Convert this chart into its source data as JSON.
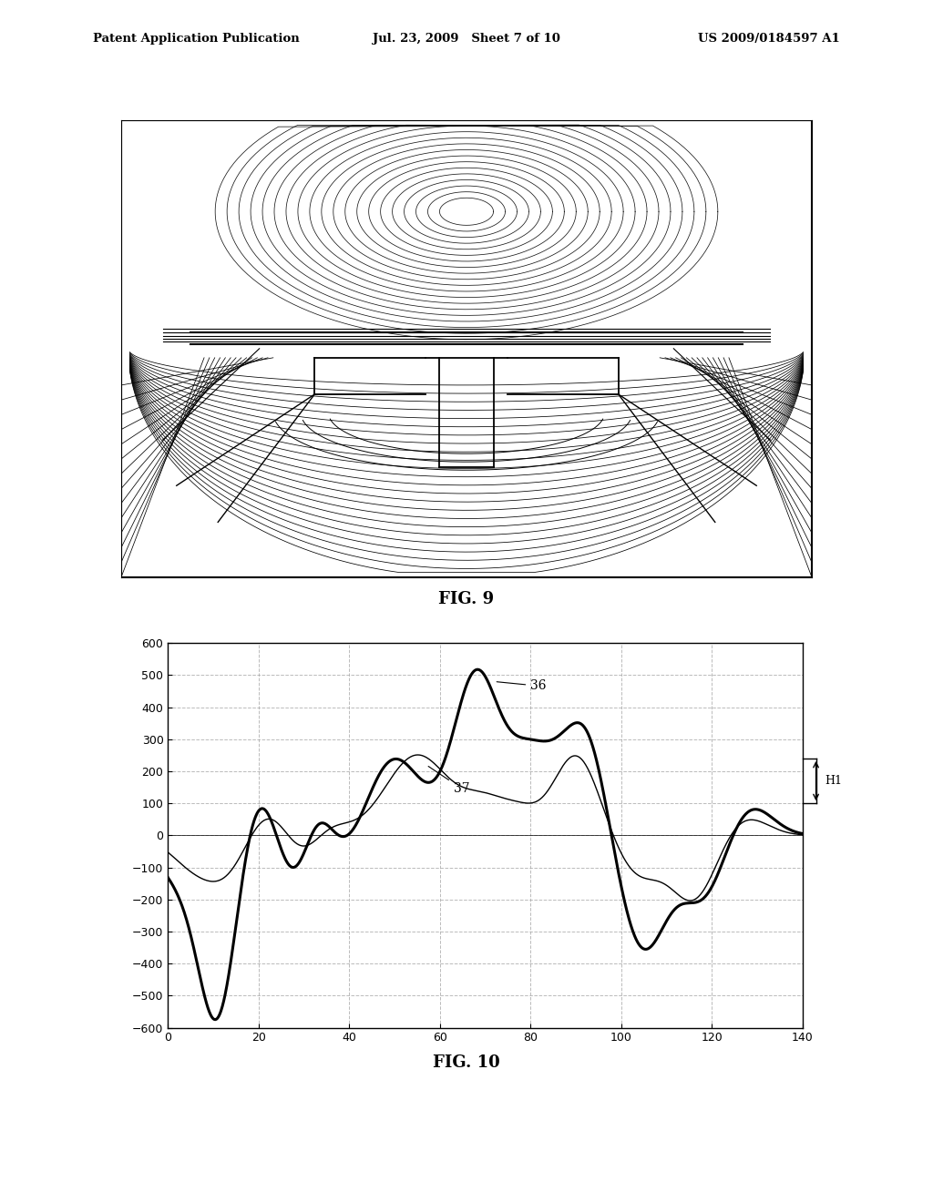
{
  "header_left": "Patent Application Publication",
  "header_mid": "Jul. 23, 2009   Sheet 7 of 10",
  "header_right": "US 2009/0184597 A1",
  "fig9_label": "FIG. 9",
  "fig10_label": "FIG. 10",
  "bg_color": "#ffffff",
  "plot_bg": "#ffffff",
  "grid_color": "#aaaaaa",
  "curve36_label": "36",
  "curve37_label": "37",
  "h1_label": "H1",
  "ylim": [
    -600,
    600
  ],
  "xlim": [
    0,
    140
  ],
  "yticks": [
    -600,
    -500,
    -400,
    -300,
    -200,
    -100,
    0,
    100,
    200,
    300,
    400,
    500,
    600
  ],
  "xticks": [
    0,
    20,
    40,
    60,
    80,
    100,
    120,
    140
  ]
}
